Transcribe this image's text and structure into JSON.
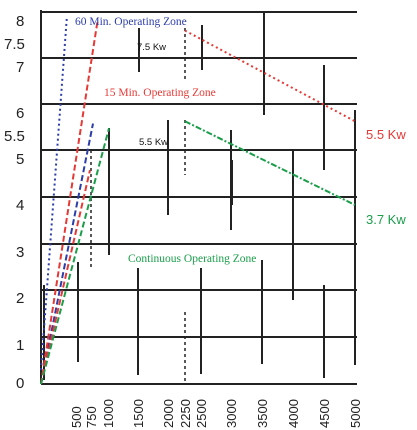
{
  "chart_data": {
    "type": "line",
    "ylim": [
      0,
      8
    ],
    "y_ticks": [
      "0",
      "1",
      "2",
      "3",
      "4",
      "5",
      "5.5",
      "6",
      "7",
      "7.5",
      "8"
    ],
    "x_ticks": [
      "500",
      "750",
      "1000",
      "1500",
      "2000",
      "2250",
      "2500",
      "3000",
      "3500",
      "4000",
      "4500",
      "5000"
    ],
    "series": [
      {
        "name": "5.5 Kw",
        "color": "#e53935",
        "dash": "dot",
        "x": [
          2250,
          5000
        ],
        "y": [
          7.6,
          5.65
        ]
      },
      {
        "name": "3.7 Kw",
        "color": "#1a9e4a",
        "dash": "dashdot",
        "x": [
          2250,
          5000
        ],
        "y": [
          5.65,
          3.85
        ]
      }
    ],
    "ramp_lines": [
      {
        "color": "#2b3da8",
        "dash": "dot",
        "x": [
          0,
          350
        ],
        "y": [
          0.3,
          7.9
        ]
      },
      {
        "color": "#2b3da8",
        "dash": "dash",
        "x": [
          0,
          750
        ],
        "y": [
          0,
          5.6
        ]
      },
      {
        "color": "#e53935",
        "dash": "dash",
        "x": [
          0,
          820
        ],
        "y": [
          0,
          7.8
        ]
      },
      {
        "color": "#e53935",
        "dash": "dash",
        "x": [
          0,
          700
        ],
        "y": [
          0,
          4.6
        ]
      },
      {
        "color": "#1a9e4a",
        "dash": "dash",
        "x": [
          0,
          1000
        ],
        "y": [
          0,
          5.5
        ]
      }
    ],
    "zones": [
      {
        "text": "60 Min. Operating Zone",
        "color": "#2b3da8"
      },
      {
        "text": "15 Min. Operating Zone",
        "color": "#e53935"
      },
      {
        "text": "Continuous Operating Zone",
        "color": "#1a9e4a"
      }
    ],
    "power_labels_small": [
      "7.5 Kw",
      "5.5 Kw"
    ],
    "power_labels_side": [
      {
        "text": "5.5 Kw",
        "color": "#e53935"
      },
      {
        "text": "3.7 Kw",
        "color": "#1a9e4a"
      }
    ],
    "grid": true
  }
}
